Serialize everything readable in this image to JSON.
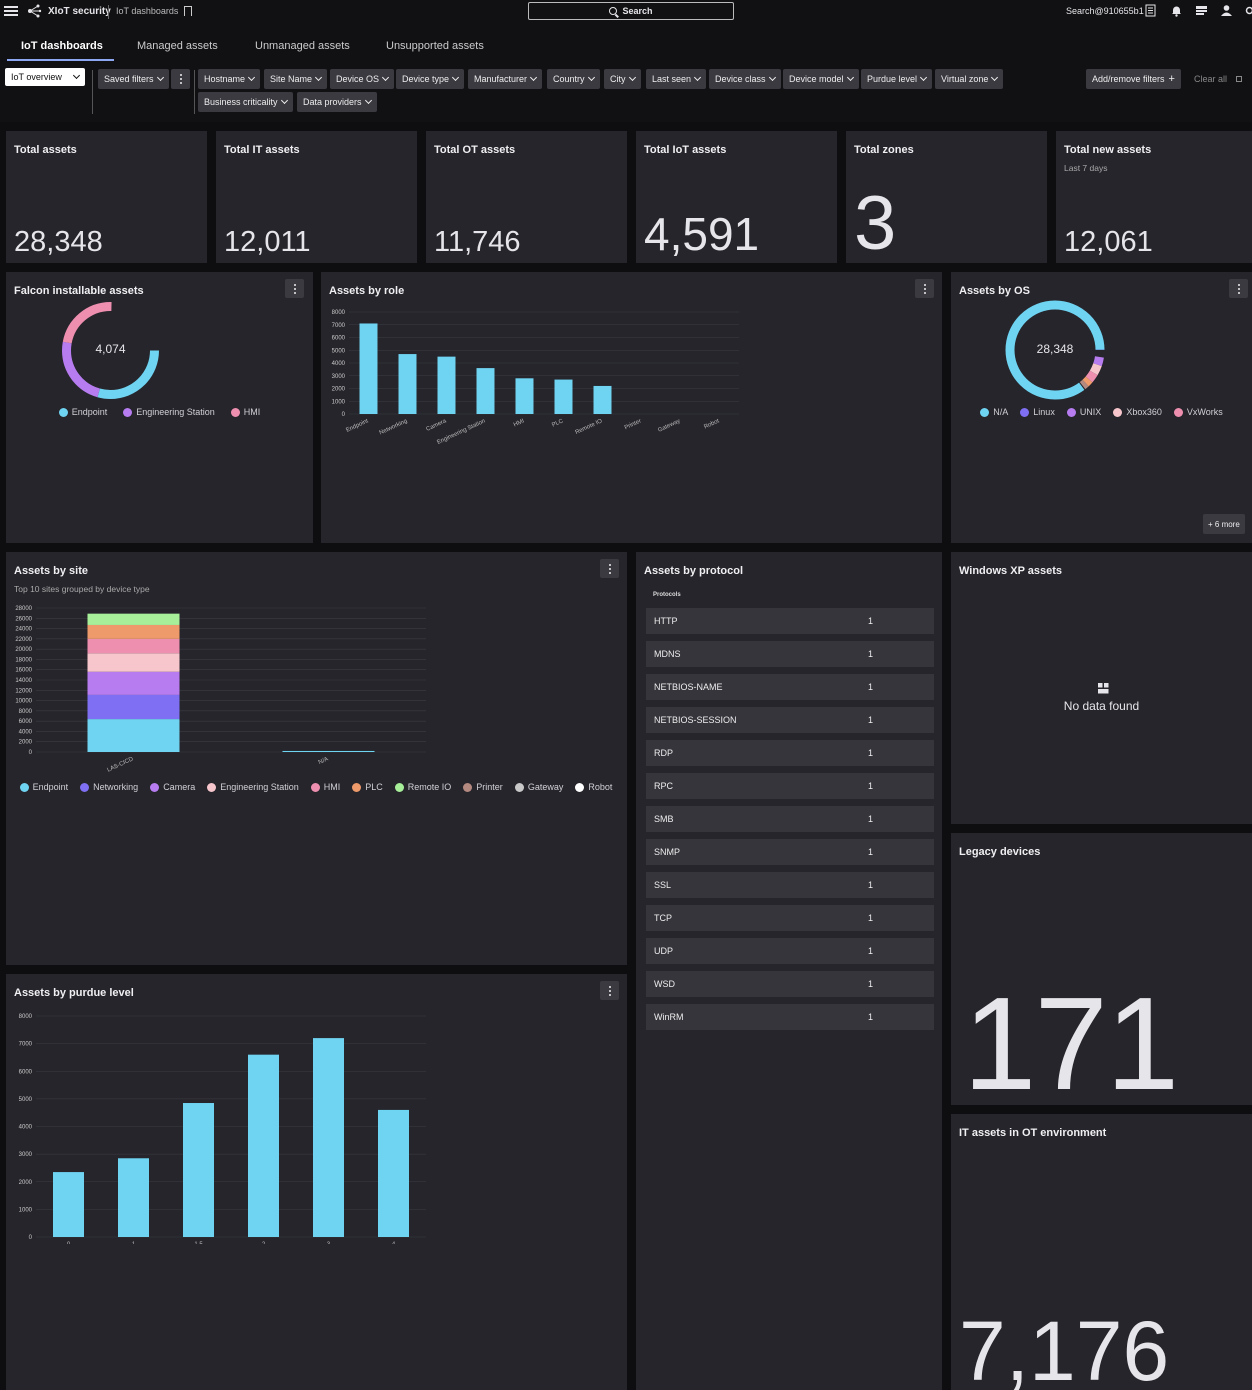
{
  "topbar": {
    "brand": "XIoT security",
    "breadcrumb": "IoT dashboards",
    "search_label": "Search",
    "user": "Search@910655b1"
  },
  "tabs": [
    {
      "label": "IoT dashboards",
      "active": true
    },
    {
      "label": "Managed assets"
    },
    {
      "label": "Unmanaged assets"
    },
    {
      "label": "Unsupported assets"
    }
  ],
  "filters": {
    "view": "IoT overview",
    "saved": "Saved filters",
    "items": [
      "Hostname",
      "Site Name",
      "Device OS",
      "Device type",
      "Manufacturer",
      "Country",
      "City",
      "Last seen",
      "Device class",
      "Device model",
      "Purdue level",
      "Virtual zone",
      "Business criticality",
      "Data providers"
    ],
    "add_remove": "Add/remove filters",
    "clear_all": "Clear all"
  },
  "kpis": [
    {
      "title": "Total assets",
      "value": "28,348"
    },
    {
      "title": "Total IT assets",
      "value": "12,011"
    },
    {
      "title": "Total OT assets",
      "value": "11,746"
    },
    {
      "title": "Total IoT assets",
      "value": "4,591"
    },
    {
      "title": "Total zones",
      "value": "3"
    },
    {
      "title": "Total new assets",
      "subtitle": "Last 7 days",
      "value": "12,061"
    }
  ],
  "falcon": {
    "title": "Falcon installable assets",
    "center": "4,074",
    "legend": [
      {
        "name": "Endpoint",
        "color": "#6fd3f2"
      },
      {
        "name": "Engineering Station",
        "color": "#b67cf0"
      },
      {
        "name": "HMI",
        "color": "#ef8fb0"
      }
    ]
  },
  "assets_by_os": {
    "title": "Assets by OS",
    "center": "28,348",
    "legend": [
      {
        "name": "N/A",
        "color": "#6fd3f2"
      },
      {
        "name": "Linux",
        "color": "#7f6ff2"
      },
      {
        "name": "UNIX",
        "color": "#b67cf0"
      },
      {
        "name": "Xbox360",
        "color": "#f6c6cc"
      },
      {
        "name": "VxWorks",
        "color": "#ef8fb0"
      }
    ],
    "more": "+ 6 more"
  },
  "protocols": {
    "title": "Assets by protocol",
    "header": "Protocols",
    "rows": [
      {
        "name": "HTTP",
        "value": "1"
      },
      {
        "name": "MDNS",
        "value": "1"
      },
      {
        "name": "NETBIOS-NAME",
        "value": "1"
      },
      {
        "name": "NETBIOS-SESSION",
        "value": "1"
      },
      {
        "name": "RDP",
        "value": "1"
      },
      {
        "name": "RPC",
        "value": "1"
      },
      {
        "name": "SMB",
        "value": "1"
      },
      {
        "name": "SNMP",
        "value": "1"
      },
      {
        "name": "SSL",
        "value": "1"
      },
      {
        "name": "TCP",
        "value": "1"
      },
      {
        "name": "UDP",
        "value": "1"
      },
      {
        "name": "WSD",
        "value": "1"
      },
      {
        "name": "WinRM",
        "value": "1"
      }
    ]
  },
  "winxp": {
    "title": "Windows XP assets",
    "empty": "No data found"
  },
  "legacy": {
    "title": "Legacy devices",
    "value": "171"
  },
  "itot": {
    "title": "IT assets in OT environment",
    "value": "7,176"
  },
  "site_card": {
    "title": "Assets by site",
    "subtitle": "Top 10 sites grouped by device type"
  },
  "chart_data": [
    {
      "id": "role",
      "type": "bar",
      "title": "Assets by role",
      "categories": [
        "Endpoint",
        "Networking",
        "Camera",
        "Engineering Station",
        "HMI",
        "PLC",
        "Remote IO",
        "Printer",
        "Gateway",
        "Robot"
      ],
      "values": [
        7100,
        4700,
        4500,
        3600,
        2800,
        2700,
        2200,
        0,
        0,
        0
      ],
      "ylim": [
        0,
        8000
      ],
      "yticks": [
        0,
        1000,
        2000,
        3000,
        4000,
        5000,
        6000,
        7000,
        8000
      ],
      "color": "#6fd3f2"
    },
    {
      "id": "site",
      "type": "bar",
      "title": "Assets by site",
      "stacked": true,
      "categories": [
        "LAS-CICD",
        "N/A"
      ],
      "series": [
        {
          "name": "Endpoint",
          "color": "#6fd3f2",
          "values": [
            6400,
            200
          ]
        },
        {
          "name": "Networking",
          "color": "#7f6ff2",
          "values": [
            4700,
            0
          ]
        },
        {
          "name": "Camera",
          "color": "#b67cf0",
          "values": [
            4500,
            0
          ]
        },
        {
          "name": "Engineering Station",
          "color": "#f6c6cc",
          "values": [
            3600,
            0
          ]
        },
        {
          "name": "HMI",
          "color": "#ef8fb0",
          "values": [
            2800,
            0
          ]
        },
        {
          "name": "PLC",
          "color": "#ef9a6a",
          "values": [
            2700,
            0
          ]
        },
        {
          "name": "Remote IO",
          "color": "#a8ef9a",
          "values": [
            2200,
            0
          ]
        },
        {
          "name": "Printer",
          "color": "#b48a80",
          "values": [
            0,
            0
          ]
        },
        {
          "name": "Gateway",
          "color": "#c8c8c8",
          "values": [
            0,
            0
          ]
        },
        {
          "name": "Robot",
          "color": "#ffffff",
          "values": [
            0,
            0
          ]
        }
      ],
      "ylim": [
        0,
        28000
      ],
      "yticks": [
        0,
        2000,
        4000,
        6000,
        8000,
        10000,
        12000,
        14000,
        16000,
        18000,
        20000,
        22000,
        24000,
        26000,
        28000
      ]
    },
    {
      "id": "purdue",
      "type": "bar",
      "title": "Assets by purdue level",
      "categories": [
        "0",
        "1",
        "1.5",
        "2",
        "3",
        "4"
      ],
      "values": [
        2350,
        2850,
        4850,
        6600,
        7200,
        4600
      ],
      "ylim": [
        0,
        8000
      ],
      "yticks": [
        0,
        1000,
        2000,
        3000,
        4000,
        5000,
        6000,
        7000,
        8000
      ],
      "color": "#6fd3f2"
    }
  ]
}
